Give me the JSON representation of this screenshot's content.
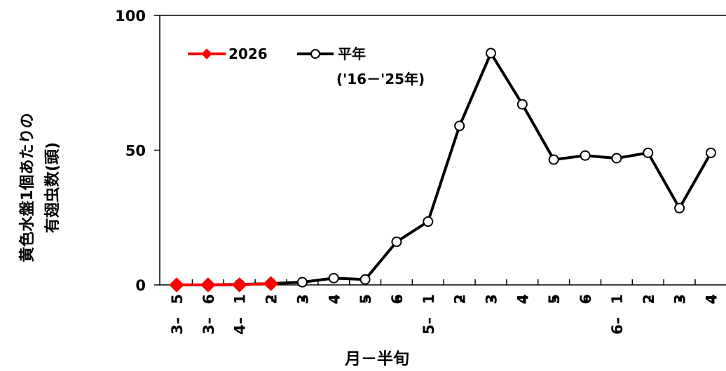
{
  "chart_data": {
    "type": "line",
    "categories": [
      "3-5",
      "3-6",
      "4-1",
      "-2",
      "-3",
      "-4",
      "-5",
      "-6",
      "5-1",
      "-2",
      "-3",
      "-4",
      "-5",
      "-6",
      "6-1",
      "-2",
      "-3",
      "-4"
    ],
    "tick_lines": [
      [
        "3",
        "5"
      ],
      [
        "3",
        "6"
      ],
      [
        "4",
        "1"
      ],
      [
        "",
        "2"
      ],
      [
        "",
        "3"
      ],
      [
        "",
        "4"
      ],
      [
        "",
        "5"
      ],
      [
        "",
        "6"
      ],
      [
        "5",
        "1"
      ],
      [
        "",
        "2"
      ],
      [
        "",
        "3"
      ],
      [
        "",
        "4"
      ],
      [
        "",
        "5"
      ],
      [
        "",
        "6"
      ],
      [
        "6",
        "1"
      ],
      [
        "",
        "2"
      ],
      [
        "",
        "3"
      ],
      [
        "",
        "4"
      ]
    ],
    "series": [
      {
        "name": "2026",
        "color": "#ff0000",
        "marker": "diamond",
        "values": [
          0,
          0,
          0,
          0.5,
          null,
          null,
          null,
          null,
          null,
          null,
          null,
          null,
          null,
          null,
          null,
          null,
          null,
          null
        ]
      },
      {
        "name": "平年",
        "name_sub": "('16－'25年)",
        "color": "#000000",
        "marker": "open-circle",
        "values": [
          0,
          0,
          0.2,
          0.5,
          1,
          2.5,
          2,
          16,
          23.5,
          59,
          86,
          67,
          46.5,
          48,
          47,
          49,
          28.5,
          49
        ]
      }
    ],
    "ylim": [
      0,
      100
    ],
    "yticks": [
      0,
      50,
      100
    ],
    "ylabel_lines": [
      "黄色水盤1個あたりの",
      "有翅虫数(頭)"
    ],
    "xlabel": "月－半旬",
    "grid": false,
    "legend_position": "top-left"
  }
}
